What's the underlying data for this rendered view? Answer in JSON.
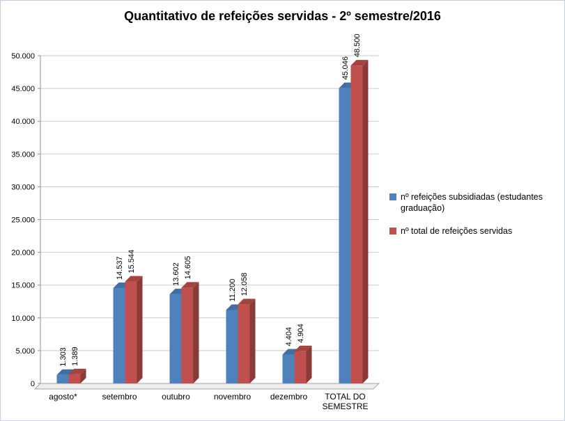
{
  "title": "Quantitativo de refeições servidas - 2º semestre/2016",
  "chart_data": {
    "type": "bar",
    "style": "3d-clustered-column",
    "title": "Quantitativo de refeições servidas - 2º semestre/2016",
    "categories": [
      "agosto*",
      "setembro",
      "outubro",
      "novembro",
      "dezembro",
      "TOTAL DO SEMESTRE"
    ],
    "series": [
      {
        "name": "nº refeições subsidiadas (estudantes graduação)",
        "color": "#4F81BD",
        "values": [
          1303,
          14537,
          13602,
          11200,
          4404,
          45046
        ],
        "labels": [
          "1.303",
          "14.537",
          "13.602",
          "11.200",
          "4.404",
          "45.046"
        ]
      },
      {
        "name": "nº total de refeições servidas",
        "color": "#C0504D",
        "values": [
          1389,
          15544,
          14605,
          12058,
          4904,
          48500
        ],
        "labels": [
          "1.389",
          "15.544",
          "14.605",
          "12.058",
          "4.904",
          "48.500"
        ]
      }
    ],
    "xlabel": "",
    "ylabel": "",
    "ylim": [
      0,
      50000
    ],
    "ytick_step": 5000,
    "ytick_labels": [
      "0",
      "5.000",
      "10.000",
      "15.000",
      "20.000",
      "25.000",
      "30.000",
      "35.000",
      "40.000",
      "45.000",
      "50.000"
    ],
    "grid": true,
    "legend_position": "right",
    "data_labels_rotation": -90
  }
}
